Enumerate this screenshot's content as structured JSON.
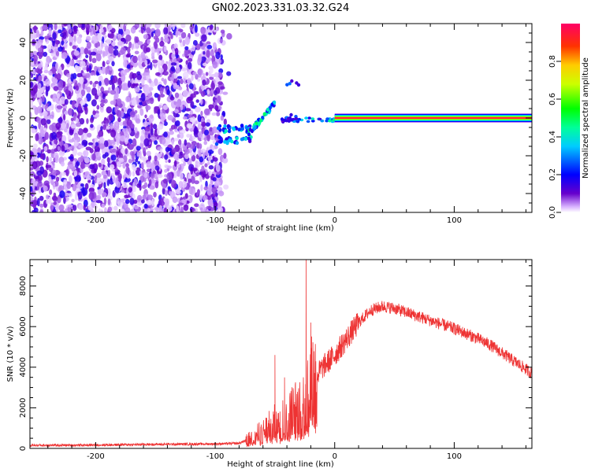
{
  "title": "GN02.2023.331.03.32.G24",
  "chart_data": [
    {
      "type": "heatmap",
      "xlabel": "Height of straight line (km)",
      "ylabel": "Frequency (Hz)",
      "xlim": [
        -255,
        165
      ],
      "ylim": [
        -50,
        50
      ],
      "x_ticks": [
        -200,
        -100,
        0,
        100
      ],
      "y_ticks": [
        -40,
        -20,
        0,
        20,
        40
      ],
      "colorbar": {
        "label": "Normalized spectral amplitude",
        "range": [
          0,
          1
        ],
        "ticks": [
          0.0,
          0.2,
          0.4,
          0.6,
          0.8
        ],
        "tick_labels": [
          "0.0",
          "0.2",
          "0.4",
          "0.6",
          "0.8"
        ],
        "colormap": [
          "#ffffff",
          "#6600cc",
          "#0000ff",
          "#00ffff",
          "#00ff00",
          "#ffff00",
          "#ff0000",
          "#ff0066"
        ]
      },
      "features": {
        "noise_region_x": [
          -255,
          -88
        ],
        "transition_region_x": [
          -100,
          0
        ],
        "steady_line": {
          "x": [
            0,
            165
          ],
          "frequency": 0,
          "amplitude": 1.0
        }
      }
    },
    {
      "type": "line",
      "xlabel": "Height of straight line (km)",
      "ylabel": "SNR (10 * v/v)",
      "xlim": [
        -255,
        165
      ],
      "ylim": [
        0,
        9300
      ],
      "x_ticks": [
        -200,
        -100,
        0,
        100
      ],
      "y_ticks": [
        0,
        2000,
        4000,
        6000,
        8000
      ],
      "color": "#ee3333",
      "envelope": {
        "x": [
          -255,
          -210,
          -150,
          -100,
          -80,
          -70,
          -60,
          -50,
          -45,
          -40,
          -35,
          -30,
          -25,
          -20,
          -15,
          -10,
          0,
          10,
          20,
          30,
          40,
          50,
          60,
          70,
          80,
          90,
          100,
          110,
          120,
          130,
          140,
          150,
          165
        ],
        "y": [
          150,
          160,
          200,
          220,
          250,
          500,
          800,
          1200,
          1500,
          1200,
          1900,
          1700,
          2200,
          3000,
          3600,
          4000,
          4600,
          5400,
          6200,
          6800,
          7000,
          6900,
          6700,
          6500,
          6300,
          6100,
          5900,
          5650,
          5400,
          5100,
          4700,
          4300,
          3700
        ]
      },
      "spikes": [
        {
          "x": -50,
          "y": 4600
        },
        {
          "x": -42,
          "y": 3500
        },
        {
          "x": -24,
          "y": 9300
        },
        {
          "x": -20,
          "y": 6200
        }
      ]
    }
  ]
}
